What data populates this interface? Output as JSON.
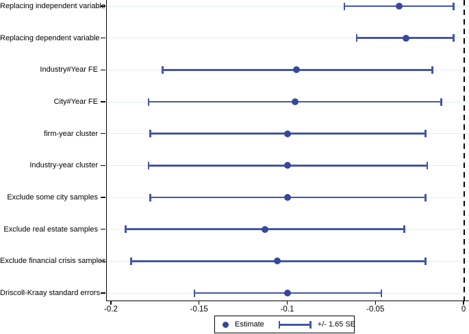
{
  "chart_data": {
    "type": "scatter",
    "subtype": "horizontal-coefficient-plot",
    "title": "",
    "xlabel": "",
    "ylabel": "",
    "xlim": [
      -0.2027,
      0.0031
    ],
    "grid": "horizontal-light",
    "categories": [
      "Replacing independent variable",
      "Replacing dependent variable",
      "Industry#Year FE",
      "City#Year FE",
      "firm-year cluster",
      "Industry-year cluster",
      "Exclude some city samples",
      "Exclude real estate samples",
      "Exclude financial crisis samples",
      "Driscoll-Kraay standard errors"
    ],
    "series": [
      {
        "name": "Estimate",
        "marker": "circle",
        "values": [
          -0.037,
          -0.033,
          -0.095,
          -0.096,
          -0.1,
          -0.1,
          -0.1,
          -0.113,
          -0.106,
          -0.1
        ]
      },
      {
        "name": "+/- 1.65 SE",
        "marker": "error-bar",
        "low": [
          -0.068,
          -0.061,
          -0.171,
          -0.179,
          -0.178,
          -0.179,
          -0.178,
          -0.192,
          -0.189,
          -0.153
        ],
        "high": [
          -0.006,
          -0.006,
          -0.018,
          -0.013,
          -0.022,
          -0.021,
          -0.022,
          -0.034,
          -0.022,
          -0.047
        ]
      }
    ],
    "xticks": {
      "values": [
        -0.2,
        -0.15,
        -0.1,
        -0.05,
        0
      ],
      "labels": [
        "-0.2",
        "-0.15",
        "-0.1",
        "-0.05",
        "0"
      ]
    },
    "zero_line": {
      "value": 0,
      "style": "dashed",
      "color": "#000000"
    },
    "legend": {
      "position": "bottom-center",
      "entries": [
        "Estimate",
        "+/- 1.65 SE"
      ]
    },
    "colors": {
      "estimate_marker": "#36489d",
      "error_bar": "#4156a6",
      "gridline": "#dfeef5",
      "axis": "#000000"
    }
  }
}
